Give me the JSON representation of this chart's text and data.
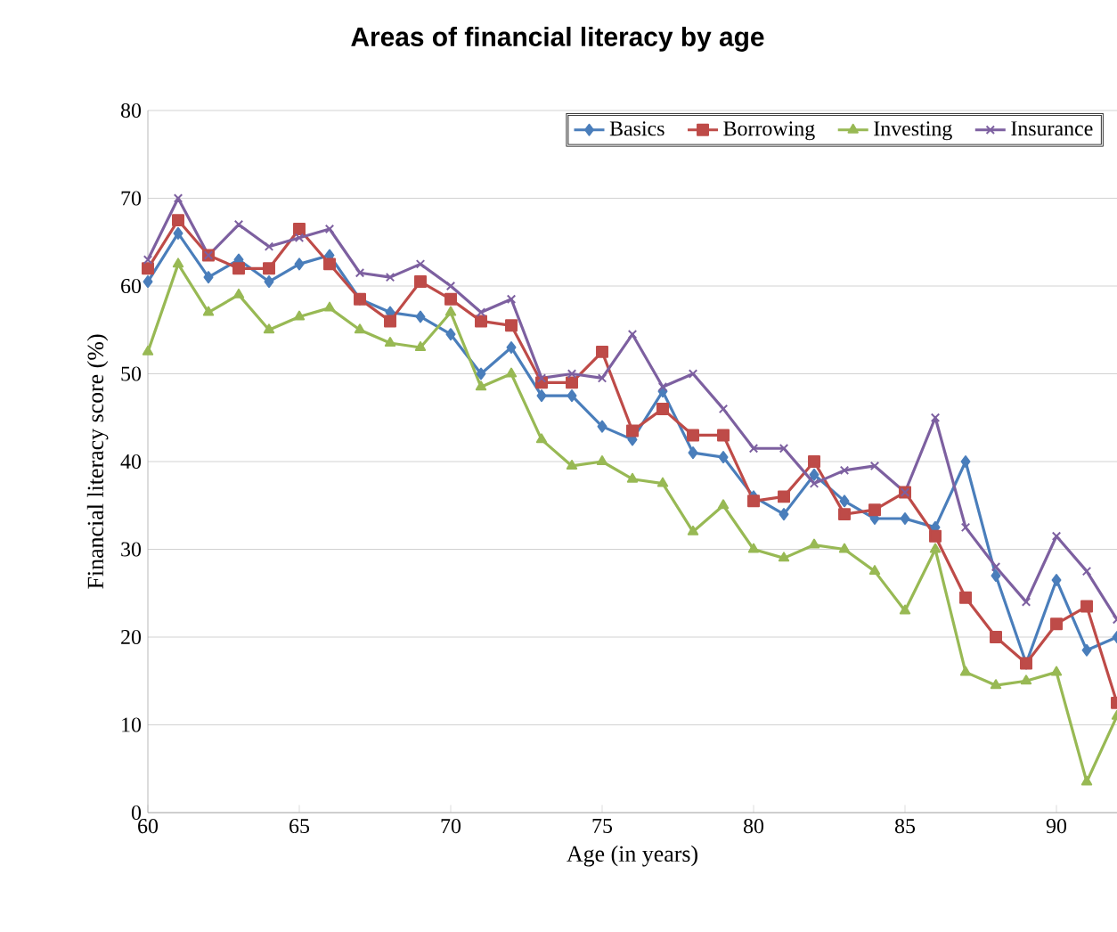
{
  "chart_data": {
    "type": "line",
    "title": "Areas of financial literacy by age",
    "xlabel": "Age (in years)",
    "ylabel": "Financial literacy score (%)",
    "x": [
      60,
      61,
      62,
      63,
      64,
      65,
      66,
      67,
      68,
      69,
      70,
      71,
      72,
      73,
      74,
      75,
      76,
      77,
      78,
      79,
      80,
      81,
      82,
      83,
      84,
      85,
      86,
      87,
      88,
      89,
      90,
      91,
      92
    ],
    "series": [
      {
        "name": "Basics",
        "color": "#4a7ebb",
        "marker": "diamond",
        "values": [
          60.5,
          66,
          61,
          63,
          60.5,
          62.5,
          63.5,
          58.5,
          57,
          56.5,
          54.5,
          50,
          53,
          47.5,
          47.5,
          44,
          42.5,
          48,
          41,
          40.5,
          36,
          34,
          38.5,
          35.5,
          33.5,
          33.5,
          32.5,
          40,
          27,
          17,
          26.5,
          18.5,
          20
        ]
      },
      {
        "name": "Borrowing",
        "color": "#be4b48",
        "marker": "square",
        "values": [
          62,
          67.5,
          63.5,
          62,
          62,
          66.5,
          62.5,
          58.5,
          56,
          60.5,
          58.5,
          56,
          55.5,
          49,
          49,
          52.5,
          43.5,
          46,
          43,
          43,
          35.5,
          36,
          40,
          34,
          34.5,
          36.5,
          31.5,
          24.5,
          20,
          17,
          21.5,
          23.5,
          12.5
        ]
      },
      {
        "name": "Investing",
        "color": "#98b954",
        "marker": "triangle",
        "values": [
          52.5,
          62.5,
          57,
          59,
          55,
          56.5,
          57.5,
          55,
          53.5,
          53,
          57,
          48.5,
          50,
          42.5,
          39.5,
          40,
          38,
          37.5,
          32,
          35,
          30,
          29,
          30.5,
          30,
          27.5,
          23,
          30,
          16,
          14.5,
          15,
          16,
          3.5,
          11
        ]
      },
      {
        "name": "Insurance",
        "color": "#7d60a0",
        "marker": "cross",
        "values": [
          63,
          70,
          63.5,
          67,
          64.5,
          65.5,
          66.5,
          61.5,
          61,
          62.5,
          60,
          57,
          58.5,
          49.5,
          50,
          49.5,
          54.5,
          48.5,
          50,
          46,
          41.5,
          41.5,
          37.5,
          39,
          39.5,
          36.5,
          45,
          32.5,
          28,
          24,
          31.5,
          27.5,
          22
        ]
      }
    ],
    "xlim": [
      60,
      92
    ],
    "ylim": [
      0,
      80
    ],
    "xticks": [
      60,
      65,
      70,
      75,
      80,
      85,
      90
    ],
    "yticks": [
      0,
      10,
      20,
      30,
      40,
      50,
      60,
      70,
      80
    ],
    "grid": "y",
    "legend": "top right",
    "line_style": "solid"
  }
}
